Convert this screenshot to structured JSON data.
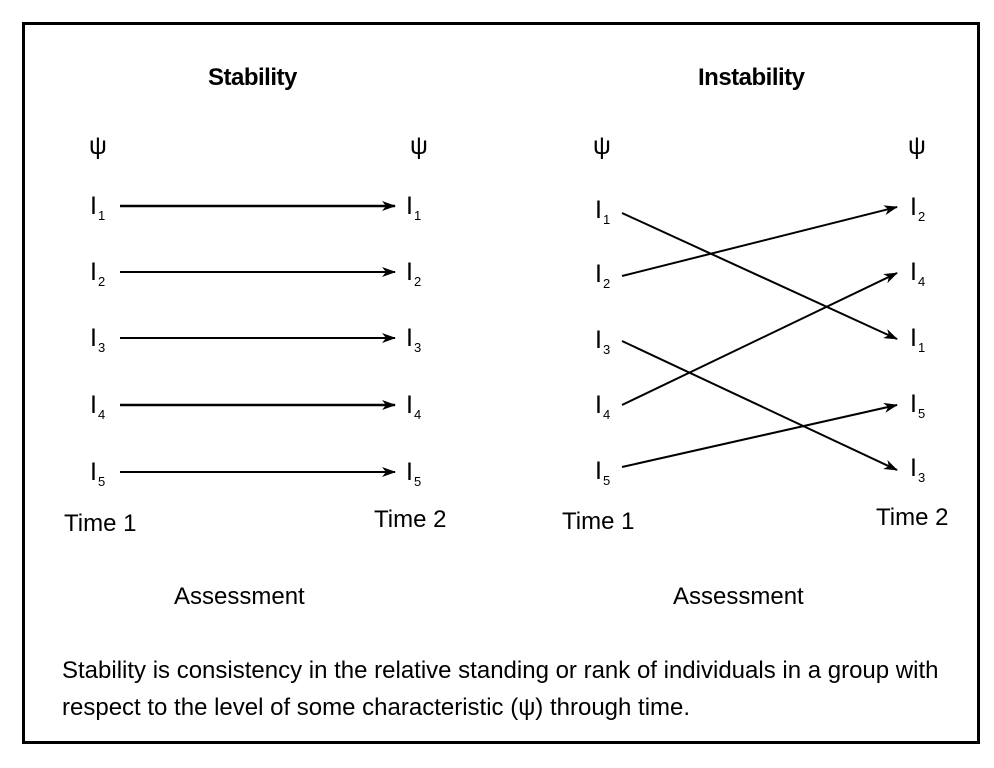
{
  "stability": {
    "title": "Stability",
    "characteristic_left": "ψ",
    "characteristic_right": "ψ",
    "left_nodes": [
      {
        "letter": "I",
        "sub": "1"
      },
      {
        "letter": "I",
        "sub": "2"
      },
      {
        "letter": "I",
        "sub": "3"
      },
      {
        "letter": "I",
        "sub": "4"
      },
      {
        "letter": "I",
        "sub": "5"
      }
    ],
    "right_nodes": [
      {
        "letter": "I",
        "sub": "1"
      },
      {
        "letter": "I",
        "sub": "2"
      },
      {
        "letter": "I",
        "sub": "3"
      },
      {
        "letter": "I",
        "sub": "4"
      },
      {
        "letter": "I",
        "sub": "5"
      }
    ],
    "connections": [
      [
        1,
        1
      ],
      [
        2,
        2
      ],
      [
        3,
        3
      ],
      [
        4,
        4
      ],
      [
        5,
        5
      ]
    ],
    "time1": "Time 1",
    "time2": "Time 2",
    "assessment": "Assessment"
  },
  "instability": {
    "title": "Instability",
    "characteristic_left": "ψ",
    "characteristic_right": "ψ",
    "left_nodes": [
      {
        "letter": "I",
        "sub": "1"
      },
      {
        "letter": "I",
        "sub": "2"
      },
      {
        "letter": "I",
        "sub": "3"
      },
      {
        "letter": "I",
        "sub": "4"
      },
      {
        "letter": "I",
        "sub": "5"
      }
    ],
    "right_nodes": [
      {
        "letter": "I",
        "sub": "2"
      },
      {
        "letter": "I",
        "sub": "4"
      },
      {
        "letter": "I",
        "sub": "1"
      },
      {
        "letter": "I",
        "sub": "5"
      },
      {
        "letter": "I",
        "sub": "3"
      }
    ],
    "connections": [
      [
        1,
        1
      ],
      [
        2,
        2
      ],
      [
        3,
        3
      ],
      [
        4,
        4
      ],
      [
        5,
        5
      ]
    ],
    "time1": "Time 1",
    "time2": "Time 2",
    "assessment": "Assessment"
  },
  "caption": "Stability is consistency in the relative standing or rank of individuals in a group with respect to the level of some characteristic (ψ) through time."
}
